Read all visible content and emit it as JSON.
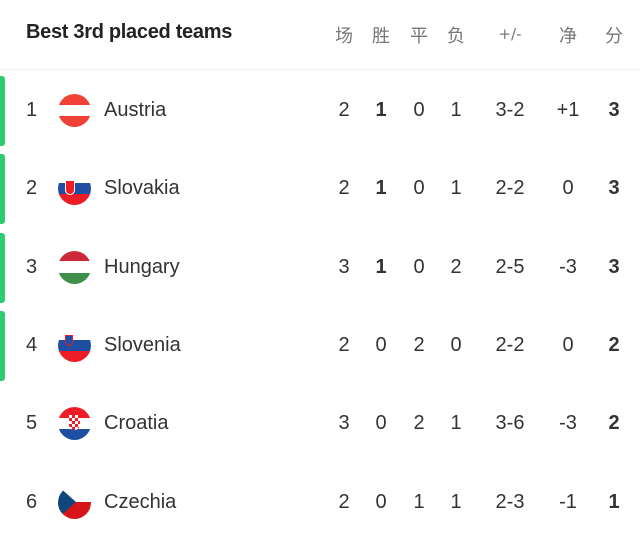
{
  "title": "Best 3rd placed teams",
  "columns": [
    "场",
    "胜",
    "平",
    "负",
    "+/-",
    "净",
    "分"
  ],
  "accent": "#2ecc71",
  "rows": [
    {
      "rank": "1",
      "team": "Austria",
      "flag": "austria-flag",
      "p": "2",
      "w": "1",
      "d": "0",
      "l": "1",
      "goals": "3-2",
      "gd": "+1",
      "pts": "3",
      "qualified": true
    },
    {
      "rank": "2",
      "team": "Slovakia",
      "flag": "slovakia-flag",
      "p": "2",
      "w": "1",
      "d": "0",
      "l": "1",
      "goals": "2-2",
      "gd": "0",
      "pts": "3",
      "qualified": true
    },
    {
      "rank": "3",
      "team": "Hungary",
      "flag": "hungary-flag",
      "p": "3",
      "w": "1",
      "d": "0",
      "l": "2",
      "goals": "2-5",
      "gd": "-3",
      "pts": "3",
      "qualified": true
    },
    {
      "rank": "4",
      "team": "Slovenia",
      "flag": "slovenia-flag",
      "p": "2",
      "w": "0",
      "d": "2",
      "l": "0",
      "goals": "2-2",
      "gd": "0",
      "pts": "2",
      "qualified": true
    },
    {
      "rank": "5",
      "team": "Croatia",
      "flag": "croatia-flag",
      "p": "3",
      "w": "0",
      "d": "2",
      "l": "1",
      "goals": "3-6",
      "gd": "-3",
      "pts": "2",
      "qualified": false
    },
    {
      "rank": "6",
      "team": "Czechia",
      "flag": "czechia-flag",
      "p": "2",
      "w": "0",
      "d": "1",
      "l": "1",
      "goals": "2-3",
      "gd": "-1",
      "pts": "1",
      "qualified": false
    }
  ]
}
